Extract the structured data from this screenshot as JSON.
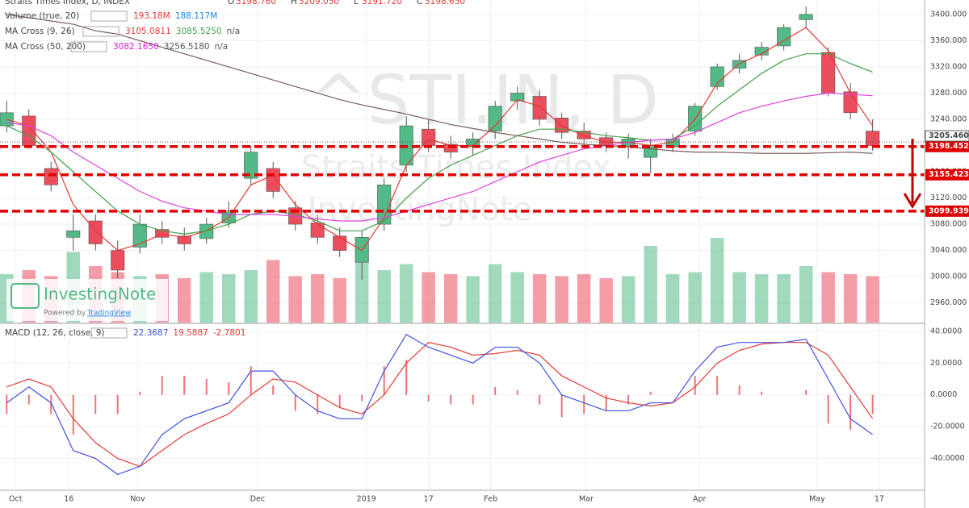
{
  "chart_data": {
    "type": "candlestick",
    "title": "Straits Times Index, D, INDEX",
    "ohlc_readout": [
      "O",
      "3198.760",
      "H",
      "3209.050",
      "L",
      "3191.720",
      "C",
      "3198.650"
    ],
    "indicator_legends": [
      {
        "name": "Volume (true, 20)",
        "readouts": [
          "193.18M",
          "188.117M"
        ],
        "colors": [
          "#e53935",
          "#1e88e5"
        ]
      },
      {
        "name": "MA Cross (9, 26)",
        "readouts": [
          "3105.0811",
          "3085.5250",
          "n/a"
        ],
        "colors": [
          "#e53935",
          "#43a047",
          "#555"
        ]
      },
      {
        "name": "MA Cross (50, 200)",
        "readouts": [
          "3082.1650",
          "3256.5180",
          "n/a"
        ],
        "colors": [
          "#d81bd8",
          "#555",
          "#555"
        ]
      }
    ],
    "watermark": [
      "^STI.IN, D",
      "Straits Times Index",
      "InvestingNote"
    ],
    "logo": {
      "name": "InvestingNote",
      "tagline": "Powered by",
      "link": "TradingView"
    },
    "up_color": "#53b987",
    "down_color": "#eb4d5c",
    "open": [
      3230,
      3245,
      3165,
      3060,
      3085,
      3040,
      3045,
      3072,
      3062,
      3058,
      3082,
      3150,
      3165,
      3105,
      3082,
      3062,
      3022,
      3080,
      3170,
      3225,
      3202,
      3198,
      3222,
      3268,
      3275,
      3242,
      3222,
      3212,
      3198,
      3182,
      3198,
      3222,
      3290,
      3318,
      3338,
      3352,
      3392,
      3342,
      3282,
      3222
    ],
    "high": [
      3268,
      3255,
      3175,
      3095,
      3095,
      3055,
      3095,
      3085,
      3075,
      3090,
      3115,
      3200,
      3175,
      3115,
      3095,
      3075,
      3070,
      3150,
      3245,
      3240,
      3215,
      3220,
      3268,
      3290,
      3285,
      3250,
      3235,
      3220,
      3218,
      3210,
      3218,
      3265,
      3325,
      3340,
      3358,
      3385,
      3412,
      3350,
      3295,
      3240
    ],
    "low": [
      3220,
      3195,
      3130,
      3040,
      3040,
      2998,
      3035,
      3050,
      3040,
      3050,
      3075,
      3140,
      3120,
      3070,
      3050,
      3030,
      2995,
      3070,
      3160,
      3190,
      3180,
      3185,
      3210,
      3255,
      3230,
      3210,
      3195,
      3190,
      3180,
      3158,
      3190,
      3215,
      3285,
      3310,
      3330,
      3345,
      3380,
      3275,
      3240,
      3192
    ],
    "close": [
      3250,
      3200,
      3140,
      3070,
      3050,
      3010,
      3080,
      3060,
      3050,
      3080,
      3100,
      3190,
      3130,
      3080,
      3060,
      3040,
      3060,
      3140,
      3230,
      3200,
      3190,
      3210,
      3260,
      3280,
      3240,
      3220,
      3210,
      3200,
      3210,
      3200,
      3210,
      3260,
      3320,
      3330,
      3350,
      3380,
      3400,
      3280,
      3250,
      3200
    ],
    "volume": [
      240,
      260,
      230,
      350,
      280,
      250,
      230,
      240,
      220,
      250,
      240,
      260,
      310,
      230,
      240,
      220,
      300,
      260,
      290,
      250,
      240,
      230,
      290,
      250,
      240,
      230,
      240,
      220,
      230,
      380,
      240,
      250,
      420,
      250,
      240,
      240,
      280,
      250,
      240,
      230
    ],
    "volume_lim": [
      0,
      600
    ],
    "series": [
      {
        "name": "MA 9",
        "color": "#e53935",
        "values": [
          3240,
          3230,
          3190,
          3110,
          3070,
          3040,
          3050,
          3065,
          3060,
          3070,
          3090,
          3140,
          3155,
          3110,
          3080,
          3060,
          3040,
          3090,
          3170,
          3210,
          3200,
          3200,
          3230,
          3270,
          3260,
          3230,
          3215,
          3205,
          3205,
          3200,
          3205,
          3240,
          3295,
          3325,
          3340,
          3360,
          3380,
          3345,
          3280,
          3230
        ]
      },
      {
        "name": "MA 26",
        "color": "#43a047",
        "values": [
          3230,
          3215,
          3190,
          3160,
          3130,
          3100,
          3080,
          3070,
          3065,
          3070,
          3080,
          3095,
          3100,
          3095,
          3085,
          3070,
          3070,
          3085,
          3120,
          3150,
          3170,
          3185,
          3200,
          3215,
          3225,
          3225,
          3220,
          3215,
          3212,
          3208,
          3210,
          3230,
          3260,
          3285,
          3310,
          3330,
          3340,
          3340,
          3325,
          3312
        ]
      },
      {
        "name": "MA 50",
        "color": "#e040e0",
        "values": [
          3235,
          3230,
          3215,
          3190,
          3170,
          3150,
          3130,
          3115,
          3105,
          3100,
          3095,
          3095,
          3095,
          3092,
          3088,
          3085,
          3085,
          3090,
          3100,
          3110,
          3120,
          3130,
          3145,
          3160,
          3175,
          3185,
          3195,
          3200,
          3205,
          3208,
          3210,
          3220,
          3235,
          3250,
          3260,
          3268,
          3275,
          3280,
          3278,
          3276
        ]
      },
      {
        "name": "MA 200",
        "color": "#7b5b5b",
        "values": [
          3400,
          3395,
          3390,
          3385,
          3375,
          3370,
          3360,
          3350,
          3340,
          3330,
          3320,
          3310,
          3300,
          3290,
          3280,
          3270,
          3262,
          3255,
          3248,
          3240,
          3232,
          3226,
          3220,
          3215,
          3210,
          3205,
          3202,
          3200,
          3198,
          3195,
          3192,
          3190,
          3190,
          3189,
          3188,
          3188,
          3188,
          3189,
          3190,
          3188
        ]
      }
    ],
    "levels": [
      {
        "value": 3198.452,
        "label": "3198.452"
      },
      {
        "value": 3155.423,
        "label": "3155.423"
      },
      {
        "value": 3099.939,
        "label": "3099.939"
      }
    ],
    "level_color": "#e00000",
    "last_price": {
      "value": 3205.46,
      "label": "3205.460"
    },
    "ylim": [
      2930,
      3422
    ],
    "yticks": [
      {
        "value": 2960,
        "label": "2960.000"
      },
      {
        "value": 3000,
        "label": "3000.000"
      },
      {
        "value": 3040,
        "label": "3040.000"
      },
      {
        "value": 3080,
        "label": "3080.000"
      },
      {
        "value": 3120,
        "label": "3120.000"
      },
      {
        "value": 3160,
        "label": "3160.000"
      },
      {
        "value": 3200,
        "label": "3200.000"
      },
      {
        "value": 3240,
        "label": "3240.000"
      },
      {
        "value": 3280,
        "label": "3280.000"
      },
      {
        "value": 3320,
        "label": "3320.000"
      },
      {
        "value": 3360,
        "label": "3360.000"
      },
      {
        "value": 3400,
        "label": "3400.000"
      }
    ],
    "xlim": [
      -0.3,
      41.34
    ],
    "xticks": [
      {
        "value": 0.4,
        "label": "Oct"
      },
      {
        "value": 2.8,
        "label": "16"
      },
      {
        "value": 5.9,
        "label": "Nov"
      },
      {
        "value": 11.3,
        "label": "Dec"
      },
      {
        "value": 16.2,
        "label": "2019"
      },
      {
        "value": 19,
        "label": "17"
      },
      {
        "value": 21.8,
        "label": "Feb"
      },
      {
        "value": 26.1,
        "label": "Mar"
      },
      {
        "value": 31.2,
        "label": "Apr"
      },
      {
        "value": 36.5,
        "label": "May"
      },
      {
        "value": 39.3,
        "label": "17"
      }
    ],
    "macd": {
      "name": "MACD (12, 26, close, 9)",
      "readouts": [
        "22.3687",
        "19.5887",
        "-2.7801"
      ],
      "macd_color": "#3f51e0",
      "signal_color": "#e53935",
      "hist_color": "#e53935",
      "macd": [
        -5,
        5,
        -5,
        -35,
        -40,
        -50,
        -45,
        -25,
        -15,
        -10,
        -5,
        15,
        15,
        0,
        -10,
        -15,
        -15,
        15,
        38,
        30,
        25,
        20,
        30,
        30,
        20,
        0,
        -5,
        -10,
        -10,
        -5,
        -5,
        15,
        30,
        33,
        33,
        33,
        35,
        10,
        -15,
        -25
      ],
      "signal": [
        5,
        10,
        5,
        -15,
        -30,
        -40,
        -45,
        -35,
        -25,
        -18,
        -12,
        0,
        10,
        8,
        0,
        -8,
        -12,
        0,
        20,
        33,
        30,
        25,
        26,
        28,
        25,
        12,
        5,
        -2,
        -5,
        -7,
        -5,
        5,
        20,
        28,
        32,
        33,
        33,
        25,
        5,
        -15
      ],
      "hist": [
        -12,
        -6,
        -12,
        -25,
        -12,
        -12,
        2,
        12,
        12,
        10,
        8,
        18,
        6,
        -10,
        -12,
        -8,
        -4,
        18,
        22,
        -4,
        -6,
        -6,
        5,
        3,
        -6,
        -14,
        -12,
        -10,
        -6,
        2,
        0,
        12,
        12,
        6,
        2,
        0,
        3,
        -18,
        -22,
        -12
      ],
      "ylim": [
        -60,
        44.5
      ],
      "yticks": [
        {
          "value": 40,
          "label": "40.0000"
        },
        {
          "value": 20,
          "label": "20.0000"
        },
        {
          "value": 0,
          "label": "0.0000"
        },
        {
          "value": -20,
          "label": "-20.0000"
        },
        {
          "value": -40,
          "label": "-40.0000"
        }
      ]
    },
    "grid": true
  }
}
